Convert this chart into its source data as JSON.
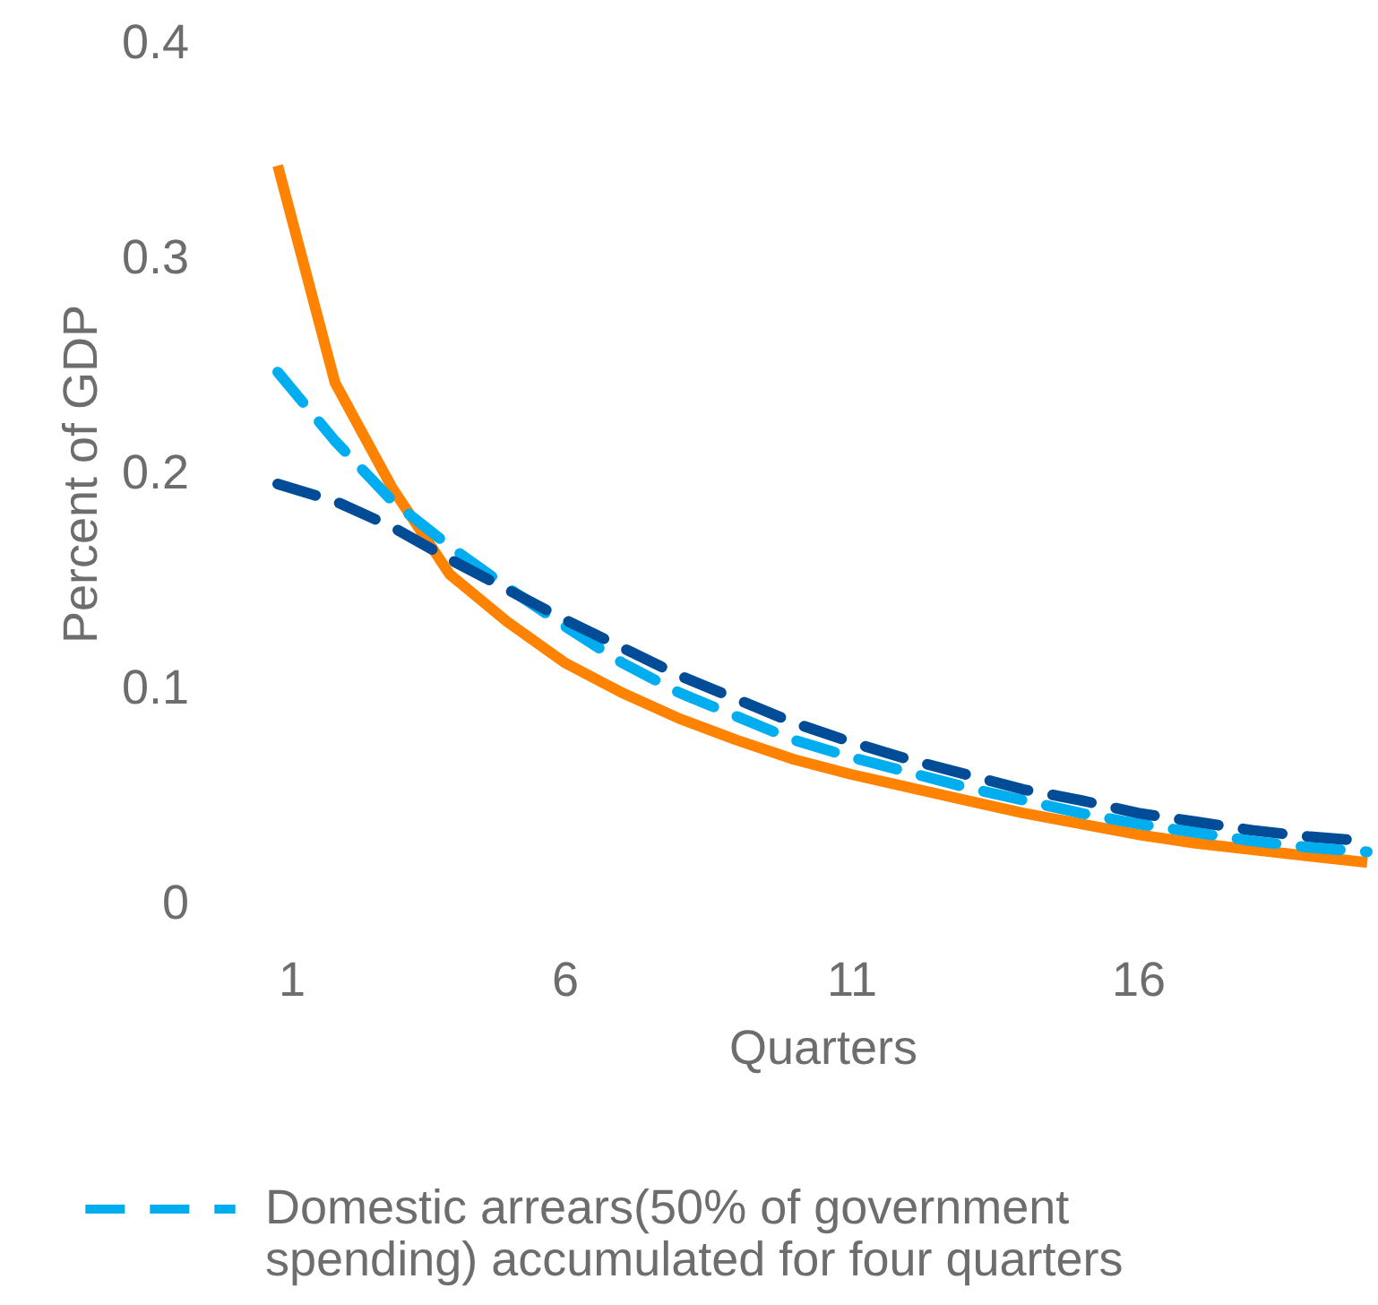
{
  "chart_data": {
    "type": "line",
    "xlabel": "Quarters",
    "ylabel": "Percent of GDP",
    "x": [
      1,
      2,
      3,
      4,
      5,
      6,
      7,
      8,
      9,
      10,
      11,
      12,
      13,
      14,
      15,
      16,
      17,
      18,
      19,
      20
    ],
    "xlim": [
      1,
      20
    ],
    "xticks": [
      1,
      6,
      11,
      16
    ],
    "ylim": [
      0,
      0.4
    ],
    "yticks": [
      0,
      0.1,
      0.2,
      0.3,
      0.4
    ],
    "grid": false,
    "legend": "bottom",
    "series": [
      {
        "color": "#ff8200",
        "line_style": "solid",
        "values": [
          0.343,
          0.242,
          0.193,
          0.153,
          0.131,
          0.112,
          0.098,
          0.086,
          0.076,
          0.067,
          0.06,
          0.054,
          0.048,
          0.042,
          0.037,
          0.032,
          0.028,
          0.025,
          0.022,
          0.019
        ]
      },
      {
        "name": "Domestic arrears(50% of government spending) accumulated for four quarters",
        "color": "#00aeef",
        "line_style": "dashed",
        "values": [
          0.247,
          0.215,
          0.187,
          0.166,
          0.147,
          0.129,
          0.112,
          0.098,
          0.087,
          0.076,
          0.068,
          0.061,
          0.054,
          0.048,
          0.042,
          0.037,
          0.033,
          0.029,
          0.026,
          0.024
        ]
      },
      {
        "color": "#004c97",
        "line_style": "dashed",
        "values": [
          0.195,
          0.187,
          0.175,
          0.16,
          0.146,
          0.132,
          0.119,
          0.106,
          0.095,
          0.084,
          0.075,
          0.067,
          0.06,
          0.053,
          0.048,
          0.042,
          0.038,
          0.034,
          0.031,
          0.029
        ]
      }
    ]
  }
}
